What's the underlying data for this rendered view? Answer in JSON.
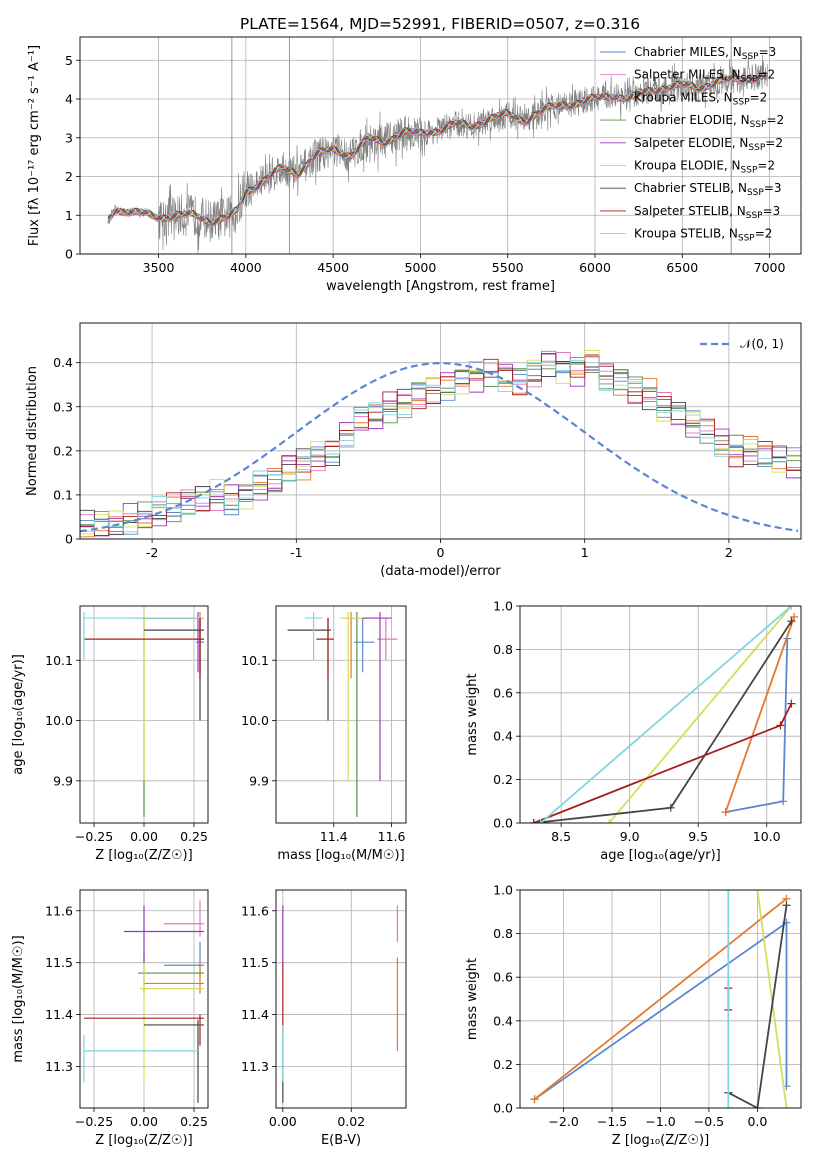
{
  "figure": {
    "title": "PLATE=1564, MJD=52991, FIBERID=0507, z=0.316"
  },
  "colors": {
    "data": "#808080",
    "Chabrier MILES": "#5b86d4",
    "Salpeter MILES": "#e577c0",
    "Kroupa MILES": "#e6772e",
    "Chabrier ELODIE": "#5a8f4a",
    "Salpeter ELODIE": "#9b39b8",
    "Kroupa ELODIE": "#d8dc5a",
    "Chabrier STELIB": "#454545",
    "Salpeter STELIB": "#aa1c1c",
    "Kroupa STELIB": "#7fd6e0",
    "gaussian": "#5b86d4"
  },
  "chart_data": [
    {
      "id": "spectrum",
      "type": "line",
      "title": "PLATE=1564, MJD=52991, FIBERID=0507, z=0.316",
      "xlabel": "wavelength [Angstrom, rest frame]",
      "ylabel": "Flux [fλ 10⁻¹⁷ erg cm⁻² s⁻¹ A⁻¹]",
      "xlim": [
        3050,
        7180
      ],
      "ylim": [
        0,
        5.6
      ],
      "xticks": [
        3500,
        4000,
        4500,
        5000,
        5500,
        6000,
        6500,
        7000
      ],
      "yticks": [
        0,
        1,
        2,
        3,
        4,
        5
      ],
      "grid": true,
      "legend_position": "right",
      "continuum": {
        "x": [
          3210,
          3250,
          3300,
          3400,
          3500,
          3600,
          3700,
          3800,
          3900,
          3950,
          4000,
          4100,
          4200,
          4300,
          4400,
          4500,
          4600,
          4700,
          4800,
          4900,
          5000,
          5100,
          5200,
          5300,
          5400,
          5500,
          5600,
          5700,
          5800,
          5900,
          6000,
          6100,
          6200,
          6300,
          6400,
          6500,
          6600,
          6700,
          6800,
          6900,
          6990
        ],
        "y": [
          0.85,
          1.15,
          1.12,
          1.05,
          0.95,
          1.0,
          1.0,
          0.85,
          0.95,
          1.1,
          1.6,
          1.9,
          2.2,
          2.1,
          2.55,
          2.7,
          2.55,
          2.95,
          2.9,
          3.15,
          3.1,
          3.2,
          3.35,
          3.3,
          3.5,
          3.6,
          3.45,
          3.7,
          3.85,
          3.9,
          4.0,
          4.1,
          4.0,
          4.2,
          4.3,
          4.35,
          4.3,
          4.45,
          4.5,
          4.55,
          4.6
        ]
      },
      "series": [
        {
          "name": "Chabrier MILES, N_SSP=3"
        },
        {
          "name": "Salpeter MILES, N_SSP=2"
        },
        {
          "name": "Kroupa MILES, N_SSP=2"
        },
        {
          "name": "Chabrier ELODIE, N_SSP=2"
        },
        {
          "name": "Salpeter ELODIE, N_SSP=2"
        },
        {
          "name": "Kroupa ELODIE, N_SSP=2"
        },
        {
          "name": "Chabrier STELIB, N_SSP=3"
        },
        {
          "name": "Salpeter STELIB, N_SSP=3"
        },
        {
          "name": "Kroupa STELIB, N_SSP=2"
        }
      ],
      "data_spikes": [
        3920,
        4250,
        6780
      ]
    },
    {
      "id": "residuals",
      "type": "bar",
      "xlabel": "(data-model)/error",
      "ylabel": "Normed distribution",
      "xlim": [
        -2.5,
        2.5
      ],
      "ylim": [
        0,
        0.49
      ],
      "xticks": [
        -2,
        -1,
        0,
        1,
        2
      ],
      "yticks": [
        0.0,
        0.1,
        0.2,
        0.3,
        0.4
      ],
      "grid": true,
      "legend_position": "top-right",
      "gaussian_label": "𝒩(0, 1)",
      "bin_width": 0.1,
      "x_start": -2.5,
      "histogram": [
        0.03,
        0.03,
        0.035,
        0.045,
        0.05,
        0.06,
        0.07,
        0.08,
        0.09,
        0.1,
        0.09,
        0.1,
        0.12,
        0.13,
        0.16,
        0.17,
        0.19,
        0.2,
        0.24,
        0.27,
        0.28,
        0.3,
        0.31,
        0.33,
        0.34,
        0.35,
        0.36,
        0.37,
        0.38,
        0.37,
        0.36,
        0.38,
        0.4,
        0.39,
        0.38,
        0.4,
        0.37,
        0.36,
        0.34,
        0.33,
        0.3,
        0.28,
        0.26,
        0.25,
        0.22,
        0.2,
        0.2,
        0.19,
        0.18,
        0.17
      ]
    },
    {
      "id": "age-vs-Z",
      "type": "scatter",
      "xlabel": "Z [log₁₀(Z/Z☉)]",
      "ylabel": "age  [log₁₀(age/yr)]",
      "xlim": [
        -0.32,
        0.32
      ],
      "ylim": [
        9.83,
        10.19
      ],
      "xticks": [
        -0.25,
        0.0,
        0.25
      ],
      "xticklabels": [
        "−0.25",
        "0.00",
        "0.25"
      ],
      "yticks": [
        9.9,
        10.0,
        10.1
      ],
      "yticklabels": [
        "9.9",
        "10.0",
        "10.1"
      ],
      "grid": true,
      "points": [
        {
          "series": "Chabrier MILES",
          "x": 0.28,
          "y": 10.13,
          "xlo": 0.26,
          "xhi": 0.3,
          "ylo": 10.08,
          "yhi": 10.17
        },
        {
          "series": "Salpeter MILES",
          "x": 0.28,
          "y": 10.135,
          "xlo": 0.25,
          "xhi": 0.3,
          "ylo": 10.1,
          "yhi": 10.17
        },
        {
          "series": "Kroupa MILES",
          "x": 0.28,
          "y": 10.17,
          "xlo": 0.0,
          "xhi": 0.3,
          "ylo": 10.07,
          "yhi": 10.18
        },
        {
          "series": "Chabrier ELODIE",
          "x": 0.0,
          "y": 10.17,
          "xlo": -0.01,
          "xhi": 0.3,
          "ylo": 9.84,
          "yhi": 10.18
        },
        {
          "series": "Salpeter ELODIE",
          "x": 0.27,
          "y": 10.17,
          "xlo": -0.05,
          "xhi": 0.3,
          "ylo": 10.08,
          "yhi": 10.18
        },
        {
          "series": "Kroupa ELODIE",
          "x": 0.0,
          "y": 10.17,
          "xlo": -0.01,
          "xhi": 0.3,
          "ylo": 9.9,
          "yhi": 10.18
        },
        {
          "series": "Chabrier STELIB",
          "x": 0.28,
          "y": 10.15,
          "xlo": 0.0,
          "xhi": 0.3,
          "ylo": 10.0,
          "yhi": 10.17
        },
        {
          "series": "Salpeter STELIB",
          "x": 0.28,
          "y": 10.135,
          "xlo": -0.3,
          "xhi": 0.3,
          "ylo": 10.07,
          "yhi": 10.17
        },
        {
          "series": "Kroupa STELIB",
          "x": -0.3,
          "y": 10.17,
          "xlo": -0.3,
          "xhi": 0.27,
          "ylo": 10.1,
          "yhi": 10.18
        }
      ]
    },
    {
      "id": "age-vs-mass",
      "type": "scatter",
      "xlabel": "mass [log₁₀(M/M☉)]",
      "ylabel": "",
      "xlim": [
        11.2,
        11.65
      ],
      "ylim": [
        9.83,
        10.19
      ],
      "xticks": [
        11.4,
        11.6
      ],
      "xticklabels": [
        "11.4",
        "11.6"
      ],
      "yticks": [
        9.9,
        10.0,
        10.1
      ],
      "yticklabels": [
        "9.9",
        "10.0",
        "10.1"
      ],
      "grid": true,
      "points": [
        {
          "series": "Chabrier MILES",
          "x": 11.5,
          "y": 10.13,
          "xlo": 11.47,
          "xhi": 11.54,
          "ylo": 10.08,
          "yhi": 10.17
        },
        {
          "series": "Salpeter MILES",
          "x": 11.58,
          "y": 10.135,
          "xlo": 11.55,
          "xhi": 11.62,
          "ylo": 10.1,
          "yhi": 10.17
        },
        {
          "series": "Kroupa MILES",
          "x": 11.46,
          "y": 10.17,
          "xlo": 11.44,
          "xhi": 11.5,
          "ylo": 10.07,
          "yhi": 10.18
        },
        {
          "series": "Chabrier ELODIE",
          "x": 11.48,
          "y": 10.17,
          "xlo": 11.44,
          "xhi": 11.52,
          "ylo": 9.84,
          "yhi": 10.18
        },
        {
          "series": "Salpeter ELODIE",
          "x": 11.56,
          "y": 10.17,
          "xlo": 11.5,
          "xhi": 11.6,
          "ylo": 9.9,
          "yhi": 10.18
        },
        {
          "series": "Kroupa ELODIE",
          "x": 11.45,
          "y": 10.17,
          "xlo": 11.42,
          "xhi": 11.5,
          "ylo": 9.9,
          "yhi": 10.18
        },
        {
          "series": "Chabrier STELIB",
          "x": 11.38,
          "y": 10.15,
          "xlo": 11.24,
          "xhi": 11.39,
          "ylo": 10.0,
          "yhi": 10.17
        },
        {
          "series": "Salpeter STELIB",
          "x": 11.38,
          "y": 10.135,
          "xlo": 11.34,
          "xhi": 11.4,
          "ylo": 10.07,
          "yhi": 10.17
        },
        {
          "series": "Kroupa STELIB",
          "x": 11.33,
          "y": 10.17,
          "xlo": 11.3,
          "xhi": 11.36,
          "ylo": 10.1,
          "yhi": 10.18
        }
      ]
    },
    {
      "id": "weight-vs-age",
      "type": "line",
      "xlabel": "age  [log₁₀(age/yr)]",
      "ylabel": "mass weight",
      "xlim": [
        8.2,
        10.25
      ],
      "ylim": [
        0,
        1
      ],
      "xticks": [
        8.5,
        9.0,
        9.5,
        10.0
      ],
      "xticklabels": [
        "8.5",
        "9.0",
        "9.5",
        "10.0"
      ],
      "yticks": [
        0,
        0.2,
        0.4,
        0.6,
        0.8,
        1.0
      ],
      "yticklabels": [
        "0.0",
        "0.2",
        "0.4",
        "0.6",
        "0.8",
        "1.0"
      ],
      "grid": true,
      "series": [
        {
          "name": "Chabrier MILES",
          "x": [
            9.7,
            10.12,
            10.15
          ],
          "y": [
            0.05,
            0.1,
            0.85
          ]
        },
        {
          "name": "Kroupa MILES",
          "x": [
            9.7,
            10.2
          ],
          "y": [
            0.05,
            0.95
          ]
        },
        {
          "name": "Kroupa ELODIE",
          "x": [
            8.85,
            10.18
          ],
          "y": [
            0.0,
            1.0
          ]
        },
        {
          "name": "Chabrier STELIB",
          "x": [
            8.3,
            9.3,
            10.18
          ],
          "y": [
            0.0,
            0.07,
            0.93
          ]
        },
        {
          "name": "Salpeter STELIB",
          "x": [
            8.3,
            10.1,
            10.18
          ],
          "y": [
            0.0,
            0.45,
            0.55
          ]
        },
        {
          "name": "Kroupa STELIB",
          "x": [
            8.35,
            10.18
          ],
          "y": [
            0.0,
            1.0
          ]
        }
      ]
    },
    {
      "id": "mass-vs-Z",
      "type": "scatter",
      "xlabel": "Z [log₁₀(Z/Z☉)]",
      "ylabel": "mass [log₁₀(M/M☉)]",
      "xlim": [
        -0.32,
        0.32
      ],
      "ylim": [
        11.22,
        11.64
      ],
      "xticks": [
        -0.25,
        0.0,
        0.25
      ],
      "xticklabels": [
        "−0.25",
        "0.00",
        "0.25"
      ],
      "yticks": [
        11.3,
        11.4,
        11.5,
        11.6
      ],
      "yticklabels": [
        "11.3",
        "11.4",
        "11.5",
        "11.6"
      ],
      "grid": true,
      "points": [
        {
          "series": "Chabrier MILES",
          "x": 0.28,
          "y": 11.495,
          "xlo": 0.1,
          "xhi": 0.3,
          "ylo": 11.47,
          "yhi": 11.54
        },
        {
          "series": "Salpeter MILES",
          "x": 0.28,
          "y": 11.575,
          "xlo": 0.1,
          "xhi": 0.3,
          "ylo": 11.55,
          "yhi": 11.62
        },
        {
          "series": "Kroupa MILES",
          "x": 0.28,
          "y": 11.46,
          "xlo": 0.0,
          "xhi": 0.3,
          "ylo": 11.44,
          "yhi": 11.5
        },
        {
          "series": "Chabrier ELODIE",
          "x": 0.0,
          "y": 11.48,
          "xlo": -0.03,
          "xhi": 0.3,
          "ylo": 11.44,
          "yhi": 11.52
        },
        {
          "series": "Salpeter ELODIE",
          "x": 0.0,
          "y": 11.56,
          "xlo": -0.1,
          "xhi": 0.3,
          "ylo": 11.5,
          "yhi": 11.61
        },
        {
          "series": "Kroupa ELODIE",
          "x": 0.0,
          "y": 11.45,
          "xlo": -0.02,
          "xhi": 0.3,
          "ylo": 11.27,
          "yhi": 11.5
        },
        {
          "series": "Chabrier STELIB",
          "x": 0.27,
          "y": 11.38,
          "xlo": 0.0,
          "xhi": 0.3,
          "ylo": 11.23,
          "yhi": 11.39
        },
        {
          "series": "Salpeter STELIB",
          "x": 0.28,
          "y": 11.393,
          "xlo": -0.3,
          "xhi": 0.3,
          "ylo": 11.34,
          "yhi": 11.4
        },
        {
          "series": "Kroupa STELIB",
          "x": -0.3,
          "y": 11.33,
          "xlo": -0.3,
          "xhi": 0.27,
          "ylo": 11.27,
          "yhi": 11.36
        }
      ]
    },
    {
      "id": "mass-vs-ebv",
      "type": "scatter",
      "xlabel": "E(B-V)",
      "ylabel": "",
      "xlim": [
        -0.002,
        0.036
      ],
      "ylim": [
        11.22,
        11.64
      ],
      "xticks": [
        0.0,
        0.02
      ],
      "xticklabels": [
        "0.00",
        "0.02"
      ],
      "yticks": [
        11.3,
        11.4,
        11.5,
        11.6
      ],
      "yticklabels": [
        "11.3",
        "11.4",
        "11.5",
        "11.6"
      ],
      "grid": true,
      "points": [
        {
          "series": "Salpeter MILES",
          "x": 0.0335,
          "y": 11.575,
          "xlo": 0.0335,
          "xhi": 0.0335,
          "ylo": 11.54,
          "yhi": 11.61
        },
        {
          "series": "Kroupa MILES",
          "x": 0.0335,
          "y": 11.42,
          "xlo": 0.0335,
          "xhi": 0.0335,
          "ylo": 11.33,
          "yhi": 11.51
        },
        {
          "series": "Salpeter ELODIE",
          "x": 0.0,
          "y": 11.56,
          "xlo": 0.0,
          "xhi": 0.0,
          "ylo": 11.5,
          "yhi": 11.61
        },
        {
          "series": "Chabrier STELIB",
          "x": 0.0,
          "y": 11.3,
          "xlo": 0.0,
          "xhi": 0.0,
          "ylo": 11.23,
          "yhi": 11.36
        },
        {
          "series": "Salpeter STELIB",
          "x": 0.0,
          "y": 11.42,
          "xlo": 0.0,
          "xhi": 0.0,
          "ylo": 11.36,
          "yhi": 11.5
        },
        {
          "series": "Kroupa STELIB",
          "x": 0.0,
          "y": 11.33,
          "xlo": 0.0,
          "xhi": 0.0,
          "ylo": 11.27,
          "yhi": 11.38
        }
      ]
    },
    {
      "id": "weight-vs-Z",
      "type": "line",
      "xlabel": "Z [log₁₀(Z/Z☉)]",
      "ylabel": "mass weight",
      "xlim": [
        -2.45,
        0.45
      ],
      "ylim": [
        0,
        1
      ],
      "xticks": [
        -2.0,
        -1.5,
        -1.0,
        -0.5,
        0.0
      ],
      "xticklabels": [
        "−2.0",
        "−1.5",
        "−1.0",
        "−0.5",
        "0.0"
      ],
      "yticks": [
        0,
        0.2,
        0.4,
        0.6,
        0.8,
        1.0
      ],
      "yticklabels": [
        "0.0",
        "0.2",
        "0.4",
        "0.6",
        "0.8",
        "1.0"
      ],
      "grid": true,
      "series": [
        {
          "name": "Chabrier MILES",
          "x": [
            -2.3,
            0.3,
            0.3
          ],
          "y": [
            0.04,
            0.85,
            0.1
          ]
        },
        {
          "name": "Kroupa MILES",
          "x": [
            -2.3,
            0.3
          ],
          "y": [
            0.04,
            0.96
          ]
        },
        {
          "name": "Kroupa ELODIE",
          "x": [
            0.0,
            0.3
          ],
          "y": [
            1.0,
            0.0
          ]
        },
        {
          "name": "Chabrier STELIB",
          "x": [
            -0.3,
            0.0,
            0.3
          ],
          "y": [
            0.07,
            0.0,
            0.93
          ]
        },
        {
          "name": "Salpeter STELIB",
          "x": [
            -0.3,
            -0.3
          ],
          "y": [
            0.45,
            0.55
          ]
        },
        {
          "name": "Kroupa STELIB",
          "x": [
            -0.3,
            -0.3
          ],
          "y": [
            0.0,
            1.0
          ]
        }
      ]
    }
  ]
}
